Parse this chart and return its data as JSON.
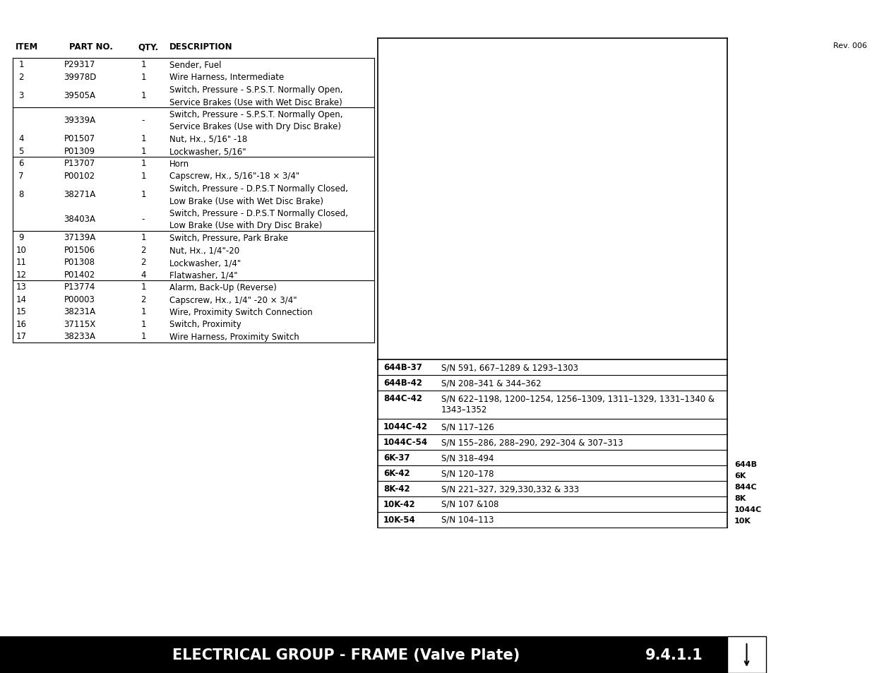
{
  "title": "ELECTRICAL GROUP - FRAME (Valve Plate)",
  "section": "9.4.1.1",
  "rev": "Rev. 006",
  "header_cols": [
    "ITEM",
    "PART NO.",
    "QTY.",
    "DESCRIPTION"
  ],
  "left_table_rows": [
    {
      "item": "1",
      "part": "P29317",
      "qty": "1",
      "desc": [
        "Sender, Fuel"
      ]
    },
    {
      "item": "2",
      "part": "39978D",
      "qty": "1",
      "desc": [
        "Wire Harness, Intermediate"
      ]
    },
    {
      "item": "3",
      "part": "39505A",
      "qty": "1",
      "desc": [
        "Switch, Pressure - S.P.S.T. Normally Open,",
        "Service Brakes (Use with Wet Disc Brake)"
      ]
    },
    {
      "item": "",
      "part": "39339A",
      "qty": "-",
      "desc": [
        "Switch, Pressure - S.P.S.T. Normally Open,",
        "Service Brakes (Use with Dry Disc Brake)"
      ]
    },
    {
      "item": "4",
      "part": "P01507",
      "qty": "1",
      "desc": [
        "Nut, Hx., 5/16\" -18"
      ]
    },
    {
      "item": "5",
      "part": "P01309",
      "qty": "1",
      "desc": [
        "Lockwasher, 5/16\""
      ]
    },
    {
      "item": "6",
      "part": "P13707",
      "qty": "1",
      "desc": [
        "Horn"
      ]
    },
    {
      "item": "7",
      "part": "P00102",
      "qty": "1",
      "desc": [
        "Capscrew, Hx., 5/16\"-18 × 3/4\""
      ]
    },
    {
      "item": "8",
      "part": "38271A",
      "qty": "1",
      "desc": [
        "Switch, Pressure - D.P.S.T Normally Closed,",
        "Low Brake (Use with Wet Disc Brake)"
      ]
    },
    {
      "item": "",
      "part": "38403A",
      "qty": "-",
      "desc": [
        "Switch, Pressure - D.P.S.T Normally Closed,",
        "Low Brake (Use with Dry Disc Brake)"
      ]
    },
    {
      "item": "9",
      "part": "37139A",
      "qty": "1",
      "desc": [
        "Switch, Pressure, Park Brake"
      ]
    },
    {
      "item": "10",
      "part": "P01506",
      "qty": "2",
      "desc": [
        "Nut, Hx., 1/4\"-20"
      ]
    },
    {
      "item": "11",
      "part": "P01308",
      "qty": "2",
      "desc": [
        "Lockwasher, 1/4\""
      ]
    },
    {
      "item": "12",
      "part": "P01402",
      "qty": "4",
      "desc": [
        "Flatwasher, 1/4\""
      ]
    },
    {
      "item": "13",
      "part": "P13774",
      "qty": "1",
      "desc": [
        "Alarm, Back-Up (Reverse)"
      ]
    },
    {
      "item": "14",
      "part": "P00003",
      "qty": "2",
      "desc": [
        "Capscrew, Hx., 1/4\" -20 × 3/4\""
      ]
    },
    {
      "item": "15",
      "part": "38231A",
      "qty": "1",
      "desc": [
        "Wire, Proximity Switch Connection"
      ]
    },
    {
      "item": "16",
      "part": "37115X",
      "qty": "1",
      "desc": [
        "Switch, Proximity"
      ]
    },
    {
      "item": "17",
      "part": "38233A",
      "qty": "1",
      "desc": [
        "Wire Harness, Proximity Switch"
      ]
    }
  ],
  "divider_after_rows": [
    2,
    5,
    9,
    13
  ],
  "right_table_rows": [
    {
      "model": "644B-37",
      "sn": "S/N 591, 667–1289 & 1293–1303"
    },
    {
      "model": "644B-42",
      "sn": "S/N 208–341 & 344–362"
    },
    {
      "model": "844C-42",
      "sn": "S/N 622–1198, 1200–1254, 1256–1309, 1311–1329, 1331–1340 &\n1343–1352"
    },
    {
      "model": "1044C-42",
      "sn": "S/N 117–126"
    },
    {
      "model": "1044C-54",
      "sn": "S/N 155–286, 288–290, 292–304 & 307–313"
    },
    {
      "model": "6K-37",
      "sn": "S/N 318–494"
    },
    {
      "model": "6K-42",
      "sn": "S/N 120–178"
    },
    {
      "model": "8K-42",
      "sn": "S/N 221–327, 329,330,332 & 333"
    },
    {
      "model": "10K-42",
      "sn": "S/N 107 &108"
    },
    {
      "model": "10K-54",
      "sn": "S/N 104–113"
    }
  ],
  "side_labels": [
    "644B",
    "6K",
    "844C",
    "8K",
    "1044C",
    "10K"
  ],
  "bg_color": "#ffffff",
  "footer_bg": "#000000",
  "footer_text": "#ffffff"
}
